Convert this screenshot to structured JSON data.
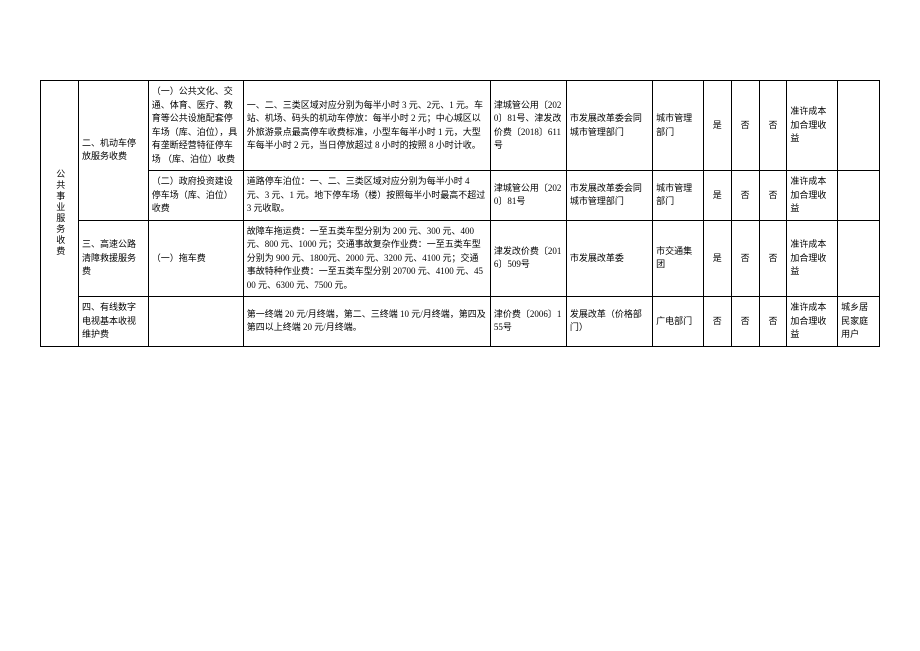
{
  "category": "公共事业服务收费",
  "rows": [
    {
      "item": "二、机动车停放服务收费",
      "sub": "（一）公共文化、交通、体育、医疗、教育等公共设施配套停车场（库、泊位），具有垄断经营特征停车场 （库、泊位）收费",
      "desc": "一、二、三类区域对应分别为每半小时 3 元、2元、1 元。车站、机场、码头的机动车停放：每半小时 2 元；中心城区以外旅游景点最高停车收费标准，小型车每半小时 1 元，大型车每半小时 2 元，当日停放超过 8 小时的按照 8 小时计收。",
      "doc": "津城管公用〔2020〕81号、津发改价费〔2018〕611 号",
      "auth": "市发展改革委会同城市管理部门",
      "dept": "城市管理部门",
      "c1": "是",
      "c2": "否",
      "c3": "否",
      "note": "准许成本加合理收益",
      "remark": ""
    },
    {
      "item": "",
      "sub": "（二）政府投资建设停车场（库、泊位）收费",
      "desc": "道路停车泊位：一、二、三类区域对应分别为每半小时 4 元、3 元、1 元。地下停车场（楼）按照每半小时最高不超过 3 元收取。",
      "doc": "津城管公用〔2020〕81号",
      "auth": "市发展改革委会同城市管理部门",
      "dept": "城市管理部门",
      "c1": "是",
      "c2": "否",
      "c3": "否",
      "note": "准许成本加合理收益",
      "remark": ""
    },
    {
      "item": "三、高速公路清障救援服务费",
      "sub": "（一）拖车费",
      "desc": "故障车拖运费：一至五类车型分别为 200 元、300 元、400 元、800 元、1000 元；交通事故复杂作业费：一至五类车型分别为 900 元、1800元、2000 元、3200 元、4100 元；交通事故特种作业费：一至五类车型分别 20700 元、4100 元、4500 元、6300 元、7500 元。",
      "doc": "津发改价费〔2016〕509号",
      "auth": "市发展改革委",
      "dept": "市交通集团",
      "c1": "是",
      "c2": "否",
      "c3": "否",
      "note": "准许成本加合理收益",
      "remark": ""
    },
    {
      "item": "四、有线数字电视基本收视维护费",
      "sub": "",
      "desc": "第一终端 20 元/月终端，第二、三终端 10 元/月终端，第四及第四以上终端 20 元/月终端。",
      "doc": "津价费〔2006〕155号",
      "auth": "发展改革（价格部门）",
      "dept": "广电部门",
      "c1": "否",
      "c2": "否",
      "c3": "否",
      "note": "准许成本加合理收益",
      "remark": "城乡居民家庭用户"
    }
  ]
}
